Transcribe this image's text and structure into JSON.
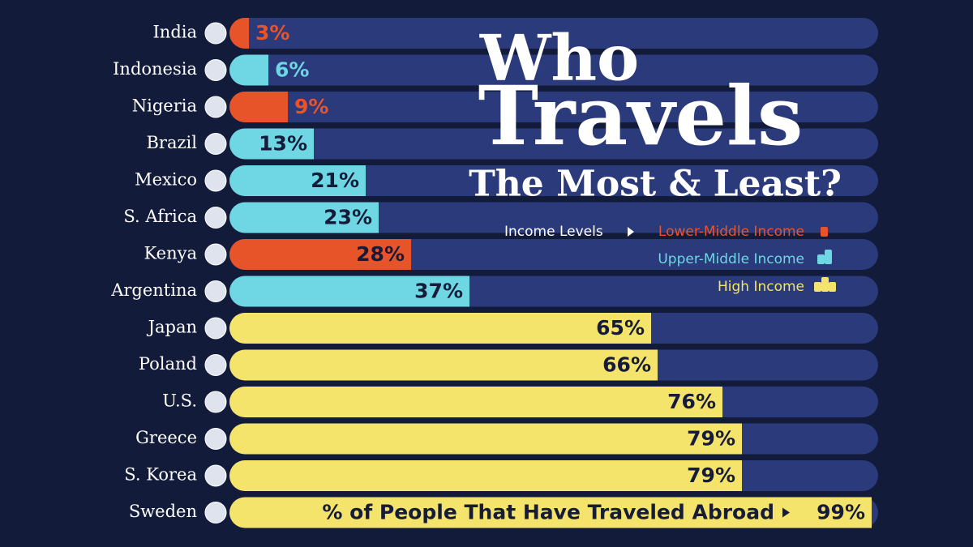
{
  "chart_data": {
    "type": "bar",
    "orientation": "horizontal",
    "title": [
      "Who",
      "Travels",
      "The Most & Least?"
    ],
    "categories": [
      "India",
      "Indonesia",
      "Nigeria",
      "Brazil",
      "Mexico",
      "S. Africa",
      "Kenya",
      "Argentina",
      "Japan",
      "Poland",
      "U.S.",
      "Greece",
      "S. Korea",
      "Sweden"
    ],
    "values": [
      3,
      6,
      9,
      13,
      21,
      23,
      28,
      37,
      65,
      66,
      76,
      79,
      79,
      99
    ],
    "value_labels": [
      "3%",
      "6%",
      "9%",
      "13%",
      "21%",
      "23%",
      "28%",
      "37%",
      "65%",
      "66%",
      "76%",
      "79%",
      "79%",
      "99%"
    ],
    "colors": [
      "#e8542a",
      "#6fd6e3",
      "#e8542a",
      "#6fd6e3",
      "#6fd6e3",
      "#6fd6e3",
      "#e8542a",
      "#6fd6e3",
      "#f4e46c",
      "#f4e46c",
      "#f4e46c",
      "#f4e46c",
      "#f4e46c",
      "#f4e46c"
    ],
    "xlim": [
      0,
      100
    ],
    "legend": {
      "title": "Income Levels",
      "items": [
        {
          "name": "Lower-Middle Income",
          "color": "#e8542a"
        },
        {
          "name": "Upper-Middle Income",
          "color": "#6fd6e3"
        },
        {
          "name": "High Income",
          "color": "#f4e46c"
        }
      ]
    },
    "annotation": "% of People That Have Traveled Abroad"
  }
}
